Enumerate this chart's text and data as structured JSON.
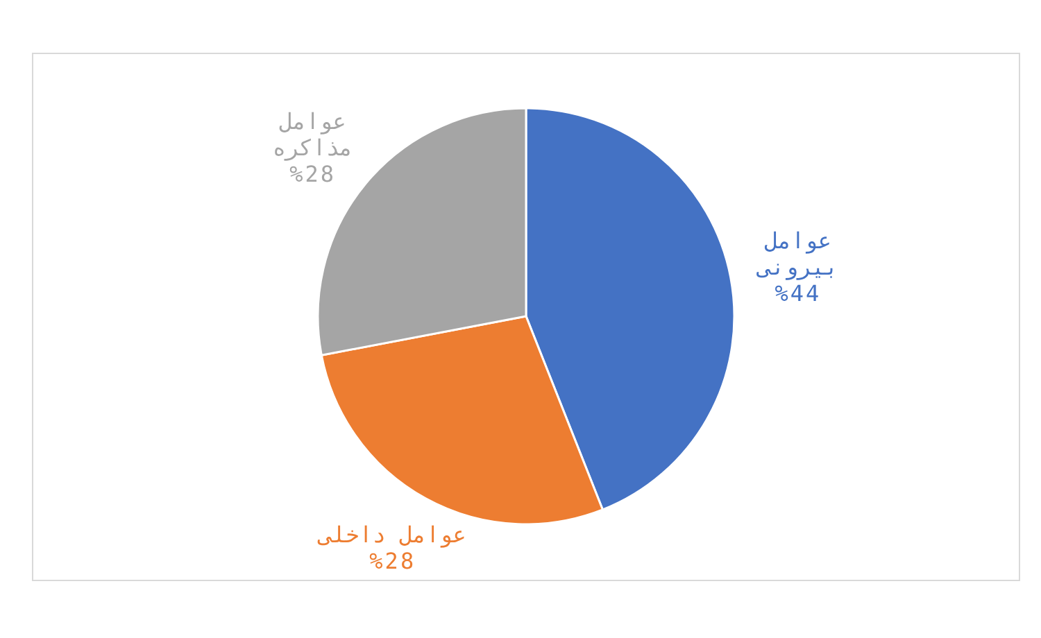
{
  "chart_data": {
    "type": "pie",
    "categories": [
      "عوامل بیرونی",
      "عوامل داخلی",
      "عوامل مذاکره"
    ],
    "values": [
      44,
      28,
      28
    ],
    "colors": [
      "#4472c4",
      "#ed7d31",
      "#a5a5a5"
    ],
    "value_labels": [
      "%44",
      "%28",
      "%28"
    ]
  }
}
